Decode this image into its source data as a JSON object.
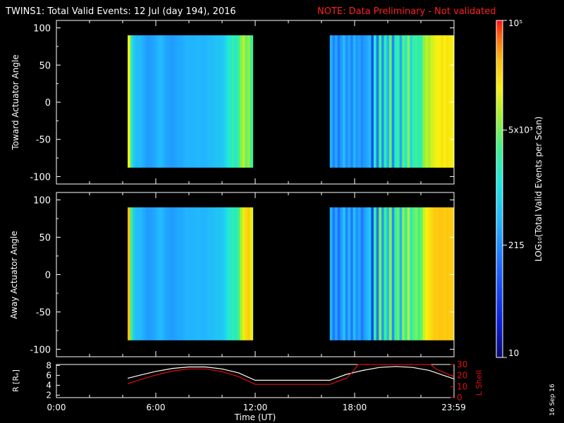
{
  "header": {
    "title": "TWINS1: Total Valid Events: 12 Jul (day 194), 2016",
    "note": "NOTE: Data Preliminary - Not validated"
  },
  "stamp": "16 Sep 16",
  "colors": {
    "background": "#000000",
    "axes": "#ffffff",
    "note": "#ff2020",
    "r_line": "#ffffff",
    "l_shell_line": "#e01010"
  },
  "chart_data": [
    {
      "type": "heatmap",
      "panel": "toward",
      "ylabel": "Toward Actuator Angle",
      "xlim": [
        0,
        24
      ],
      "ylim": [
        -110,
        110
      ],
      "yticks": [
        100,
        50,
        0,
        -50,
        -100
      ],
      "ytick_labels": [
        "100",
        "50",
        "0",
        "-50",
        "-100"
      ],
      "data_y_range": [
        -88,
        90
      ],
      "segments": [
        {
          "start": 4.3,
          "end": 11.85,
          "columns": [
            0.8,
            0.55,
            0.45,
            0.42,
            0.42,
            0.4,
            0.38,
            0.36,
            0.36,
            0.37,
            0.38,
            0.4,
            0.42,
            0.4,
            0.38,
            0.37,
            0.36,
            0.36,
            0.37,
            0.38,
            0.38,
            0.39,
            0.4,
            0.4,
            0.4,
            0.4,
            0.41,
            0.41,
            0.4,
            0.4,
            0.41,
            0.42,
            0.42,
            0.43,
            0.44,
            0.44,
            0.45,
            0.48,
            0.52,
            0.55,
            0.6,
            0.52,
            0.62,
            0.68,
            0.74,
            0.66,
            0.7,
            0.6
          ]
        },
        {
          "start": 16.5,
          "end": 23.98,
          "columns": [
            0.4,
            0.32,
            0.38,
            0.3,
            0.36,
            0.42,
            0.34,
            0.38,
            0.32,
            0.4,
            0.35,
            0.37,
            0.33,
            0.36,
            0.38,
            0.42,
            0.22,
            0.55,
            0.3,
            0.62,
            0.34,
            0.58,
            0.4,
            0.66,
            0.32,
            0.55,
            0.6,
            0.38,
            0.64,
            0.52,
            0.7,
            0.48,
            0.58,
            0.62,
            0.56,
            0.6,
            0.7,
            0.74,
            0.72,
            0.76,
            0.78,
            0.8,
            0.8,
            0.82,
            0.8,
            0.82,
            0.81,
            0.8
          ]
        }
      ]
    },
    {
      "type": "heatmap",
      "panel": "away",
      "ylabel": "Away Actuator Angle",
      "xlim": [
        0,
        24
      ],
      "ylim": [
        -110,
        110
      ],
      "yticks": [
        100,
        50,
        0,
        -50,
        -100
      ],
      "ytick_labels": [
        "100",
        "50",
        "0",
        "-50",
        "-100"
      ],
      "data_y_range": [
        -88,
        90
      ],
      "segments": [
        {
          "start": 4.3,
          "end": 11.85,
          "columns": [
            0.88,
            0.6,
            0.45,
            0.42,
            0.42,
            0.4,
            0.38,
            0.36,
            0.36,
            0.37,
            0.38,
            0.4,
            0.42,
            0.4,
            0.38,
            0.37,
            0.36,
            0.36,
            0.37,
            0.38,
            0.38,
            0.39,
            0.4,
            0.4,
            0.4,
            0.4,
            0.41,
            0.41,
            0.4,
            0.4,
            0.41,
            0.42,
            0.42,
            0.43,
            0.44,
            0.44,
            0.45,
            0.48,
            0.52,
            0.55,
            0.58,
            0.54,
            0.62,
            0.72,
            0.78,
            0.84,
            0.86,
            0.78
          ]
        },
        {
          "start": 16.5,
          "end": 23.98,
          "columns": [
            0.4,
            0.3,
            0.38,
            0.28,
            0.36,
            0.44,
            0.32,
            0.4,
            0.3,
            0.42,
            0.34,
            0.38,
            0.3,
            0.36,
            0.4,
            0.45,
            0.2,
            0.6,
            0.3,
            0.68,
            0.36,
            0.62,
            0.42,
            0.7,
            0.34,
            0.6,
            0.66,
            0.4,
            0.7,
            0.58,
            0.74,
            0.55,
            0.64,
            0.68,
            0.62,
            0.66,
            0.76,
            0.8,
            0.82,
            0.84,
            0.86,
            0.86,
            0.87,
            0.87,
            0.86,
            0.87,
            0.86,
            0.86
          ]
        }
      ]
    },
    {
      "type": "line",
      "panel": "orbit",
      "ylabel_left": "R [Rₑ]",
      "ylabel_right": "L Shell",
      "xlabel": "Time (UT)",
      "xlim": [
        0,
        24
      ],
      "xticks": [
        0,
        6,
        12,
        18,
        23.98
      ],
      "xtick_labels": [
        "0:00",
        "6:00",
        "12:00",
        "18:00",
        "23:59"
      ],
      "ylim_left": [
        1.5,
        8.2
      ],
      "yticks_left": [
        2,
        4,
        6,
        8
      ],
      "ytick_labels_left": [
        "2",
        "4",
        "6",
        "8"
      ],
      "ylim_right": [
        0,
        30
      ],
      "yticks_right": [
        0,
        10,
        20,
        30
      ],
      "ytick_labels_right": [
        "0",
        "10",
        "20",
        "30"
      ],
      "series": [
        {
          "axis": "left",
          "color": "#ffffff",
          "x": [
            4.3,
            5.0,
            6.0,
            7.0,
            8.0,
            9.0,
            10.0,
            11.0,
            12.0,
            13.0,
            14.0,
            15.0,
            16.5,
            17.5,
            18.5,
            19.5,
            20.5,
            21.5,
            22.5,
            23.98
          ],
          "y": [
            5.4,
            6.0,
            6.8,
            7.4,
            7.7,
            7.7,
            7.3,
            6.5,
            5.0,
            5.0,
            5.0,
            5.0,
            5.0,
            6.2,
            7.0,
            7.6,
            7.8,
            7.6,
            7.0,
            5.3
          ]
        },
        {
          "axis": "right",
          "color": "#e01010",
          "x": [
            4.3,
            5.0,
            6.0,
            7.0,
            8.0,
            9.0,
            10.0,
            11.0,
            12.0,
            13.0,
            14.0,
            15.0,
            16.5,
            17.5,
            18.0,
            18.2,
            22.6,
            22.9,
            23.98
          ],
          "y": [
            12.5,
            16.0,
            20.5,
            24.0,
            26.0,
            26.0,
            23.5,
            19.0,
            12.0,
            12.0,
            12.0,
            12.0,
            12.0,
            17.5,
            25.5,
            30.0,
            30.0,
            26.0,
            19.0
          ]
        }
      ]
    },
    {
      "type": "colorbar",
      "ylabel": "LOG₁₀(Total Valid Events per Scan)",
      "scale": "log",
      "range": [
        10,
        100000
      ],
      "tick_values": [
        10,
        215,
        5000,
        100000
      ],
      "tick_labels": [
        "10",
        "215",
        "5x10³",
        "10⁵"
      ]
    }
  ]
}
